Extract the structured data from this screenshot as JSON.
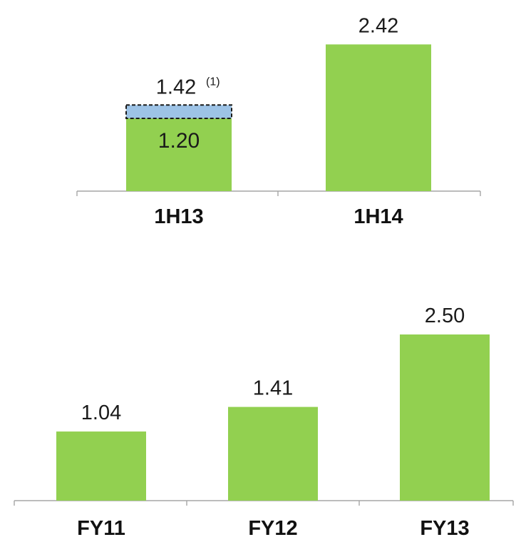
{
  "chart_data": [
    {
      "type": "bar",
      "categories": [
        "1H13",
        "1H14"
      ],
      "series": [
        {
          "values": [
            1.2,
            2.42
          ]
        },
        {
          "values": [
            0.22,
            null
          ]
        }
      ],
      "totals": [
        1.42,
        2.42
      ],
      "value_labels": [
        "1.20",
        "2.42"
      ],
      "total_labels": [
        "1.42",
        null
      ],
      "footnote_marker": "(1)",
      "colors": {
        "base": "#92d050",
        "adjustment": "#9dc3e6"
      },
      "grid": false,
      "legend": "none"
    },
    {
      "type": "bar",
      "categories": [
        "FY11",
        "FY12",
        "FY13"
      ],
      "values": [
        1.04,
        1.41,
        2.5
      ],
      "value_labels": [
        "1.04",
        "1.41",
        "2.50"
      ],
      "colors": {
        "base": "#92d050"
      },
      "grid": false,
      "legend": "none"
    }
  ]
}
